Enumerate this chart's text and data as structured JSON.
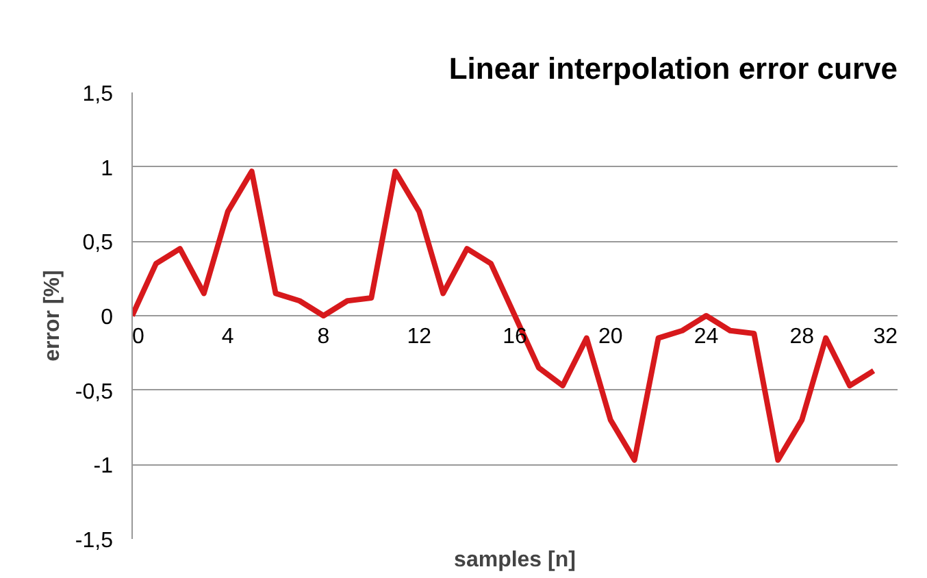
{
  "chart_data": {
    "type": "line",
    "title": "Linear interpolation error curve",
    "xlabel": "samples [n]",
    "ylabel": "error [%]",
    "x": [
      0,
      1,
      2,
      3,
      4,
      5,
      6,
      7,
      8,
      9,
      10,
      11,
      12,
      13,
      14,
      15,
      16,
      17,
      18,
      19,
      20,
      21,
      22,
      23,
      24,
      25,
      26,
      27,
      28,
      29,
      30,
      31
    ],
    "series": [
      {
        "color": "#d7191c",
        "values": [
          0,
          0.35,
          0.45,
          0.15,
          0.7,
          0.97,
          0.15,
          0.1,
          0,
          0.1,
          0.12,
          0.97,
          0.7,
          0.15,
          0.45,
          0.35,
          0,
          -0.35,
          -0.47,
          -0.15,
          -0.7,
          -0.97,
          -0.15,
          -0.1,
          0,
          -0.1,
          -0.12,
          -0.97,
          -0.7,
          -0.15,
          -0.47,
          -0.37
        ]
      }
    ],
    "xlim": [
      0,
      32
    ],
    "xticks": [
      0,
      4,
      8,
      12,
      16,
      20,
      24,
      28,
      32
    ],
    "ylim": [
      -1.5,
      1.5
    ],
    "yticks": [
      {
        "value": -1.5,
        "label": "-1,5"
      },
      -1,
      {
        "value": -0.5,
        "label": "-0,5"
      },
      0,
      {
        "value": 0.5,
        "label": "0,5"
      },
      1,
      {
        "value": 1.5,
        "label": "1,5"
      }
    ],
    "grid": "y",
    "marker": "none",
    "line_style": "solid"
  }
}
